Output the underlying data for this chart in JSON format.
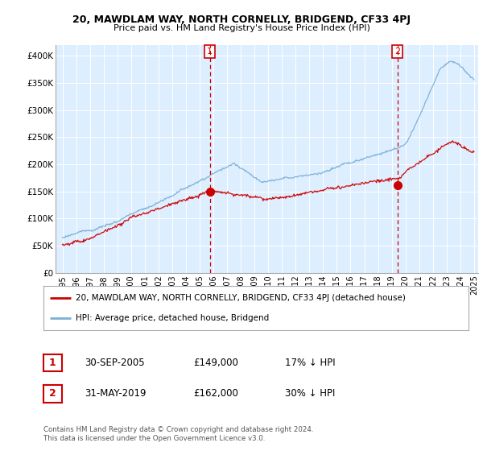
{
  "title1": "20, MAWDLAM WAY, NORTH CORNELLY, BRIDGEND, CF33 4PJ",
  "title2": "Price paid vs. HM Land Registry's House Price Index (HPI)",
  "ylim": [
    0,
    420000
  ],
  "yticks": [
    0,
    50000,
    100000,
    150000,
    200000,
    250000,
    300000,
    350000,
    400000
  ],
  "ytick_labels": [
    "£0",
    "£50K",
    "£100K",
    "£150K",
    "£200K",
    "£250K",
    "£300K",
    "£350K",
    "£400K"
  ],
  "x_start_year": 1995,
  "x_end_year": 2025,
  "hpi_color": "#7bafd4",
  "price_color": "#cc0000",
  "vline_color": "#cc0000",
  "bg_shading_color": "#ddeeff",
  "sale1_year": 2005.75,
  "sale1_price": 149000,
  "sale2_year": 2019.42,
  "sale2_price": 162000,
  "legend_line1": "20, MAWDLAM WAY, NORTH CORNELLY, BRIDGEND, CF33 4PJ (detached house)",
  "legend_line2": "HPI: Average price, detached house, Bridgend",
  "table_row1": [
    "1",
    "30-SEP-2005",
    "£149,000",
    "17% ↓ HPI"
  ],
  "table_row2": [
    "2",
    "31-MAY-2019",
    "£162,000",
    "30% ↓ HPI"
  ],
  "footer": "Contains HM Land Registry data © Crown copyright and database right 2024.\nThis data is licensed under the Open Government Licence v3.0.",
  "background_color": "#ffffff",
  "grid_color": "#ccddee"
}
